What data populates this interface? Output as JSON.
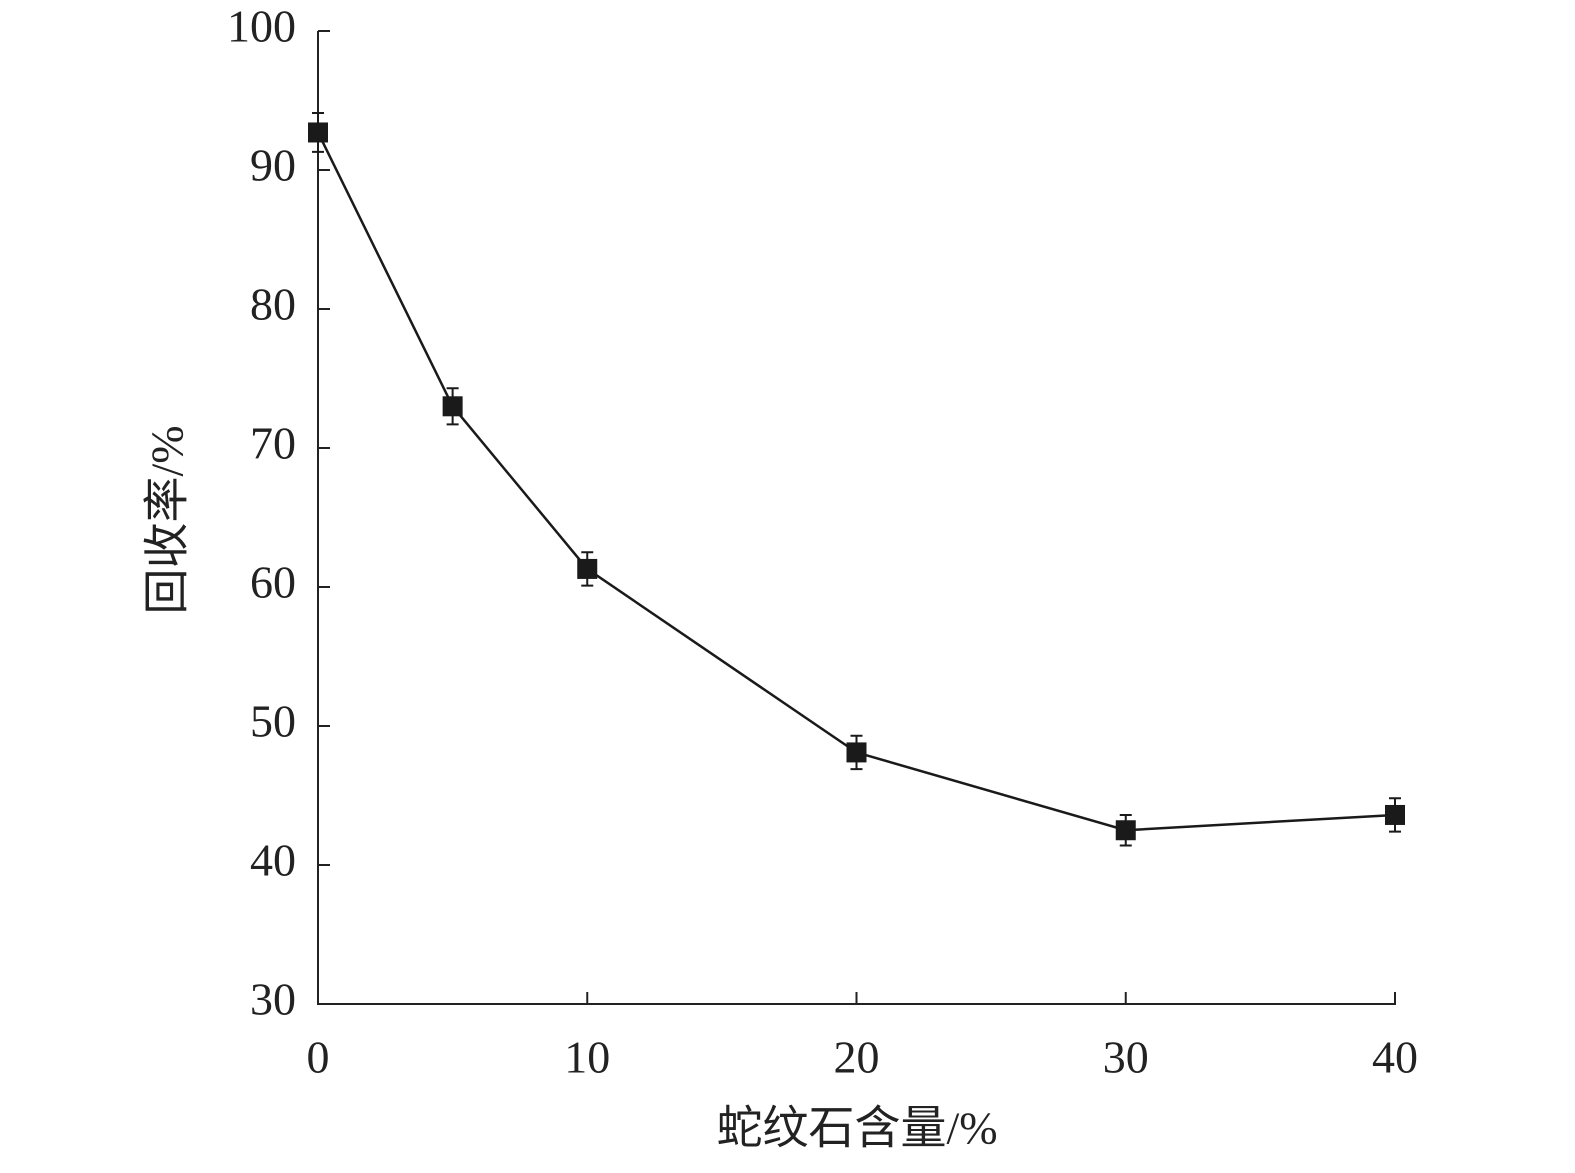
{
  "chart_data": {
    "type": "line",
    "x_label": "蛇纹石含量/%",
    "y_label": "回收率/%",
    "x": [
      0,
      5,
      10,
      20,
      30,
      40
    ],
    "series": [
      {
        "color": "#1a1a1a",
        "values": [
          92.7,
          73.0,
          61.3,
          48.1,
          42.5,
          43.6
        ],
        "errors": [
          1.4,
          1.3,
          1.2,
          1.2,
          1.1,
          1.2
        ]
      }
    ],
    "xlim": [
      0,
      40
    ],
    "xticks": [
      0,
      10,
      20,
      30,
      40
    ],
    "ylim": [
      30,
      100
    ],
    "yticks": [
      30,
      40,
      50,
      60,
      70,
      80,
      90,
      100
    ]
  }
}
